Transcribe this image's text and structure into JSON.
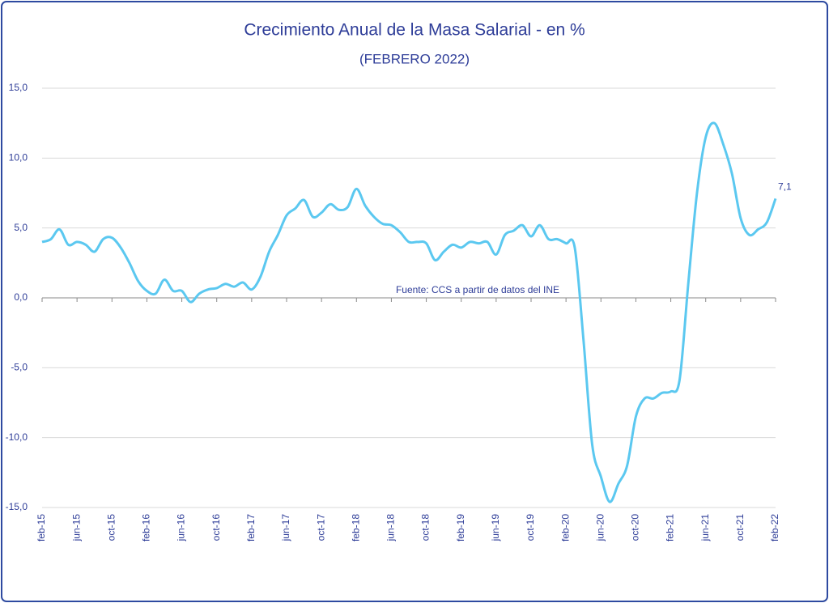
{
  "chart_data": {
    "type": "line",
    "title": "Crecimiento Anual de la Masa Salarial - en %",
    "subtitle": "(FEBRERO 2022)",
    "annotation": "Fuente: CCS a partir de datos del INE",
    "categories": [
      "feb-15",
      null,
      null,
      null,
      "jun-15",
      null,
      null,
      null,
      "oct-15",
      null,
      null,
      null,
      "feb-16",
      null,
      null,
      null,
      "jun-16",
      null,
      null,
      null,
      "oct-16",
      null,
      null,
      null,
      "feb-17",
      null,
      null,
      null,
      "jun-17",
      null,
      null,
      null,
      "oct-17",
      null,
      null,
      null,
      "feb-18",
      null,
      null,
      null,
      "jun-18",
      null,
      null,
      null,
      "oct-18",
      null,
      null,
      null,
      "feb-19",
      null,
      null,
      null,
      "jun-19",
      null,
      null,
      null,
      "oct-19",
      null,
      null,
      null,
      "feb-20",
      null,
      null,
      null,
      "jun-20",
      null,
      null,
      null,
      "oct-20",
      null,
      null,
      null,
      "feb-21",
      null,
      null,
      null,
      "jun-21",
      null,
      null,
      null,
      "oct-21",
      null,
      null,
      null,
      "feb-22"
    ],
    "series": [
      {
        "name": "Crecimiento Anual de la Masa Salarial",
        "color": "#5bc8f0",
        "values": [
          4.0,
          4.2,
          4.9,
          3.8,
          4.0,
          3.8,
          3.3,
          4.2,
          4.3,
          3.6,
          2.5,
          1.2,
          0.5,
          0.3,
          1.3,
          0.5,
          0.5,
          -0.3,
          0.3,
          0.6,
          0.7,
          1.0,
          0.8,
          1.1,
          0.6,
          1.5,
          3.3,
          4.5,
          5.9,
          6.4,
          7.0,
          5.8,
          6.1,
          6.7,
          6.3,
          6.5,
          7.8,
          6.6,
          5.8,
          5.3,
          5.2,
          4.7,
          4.0,
          4.0,
          3.9,
          2.7,
          3.3,
          3.8,
          3.6,
          4.0,
          3.9,
          4.0,
          3.1,
          4.5,
          4.8,
          5.2,
          4.4,
          5.2,
          4.2,
          4.2,
          3.9,
          3.6,
          -3.0,
          -10.5,
          -12.8,
          -14.6,
          -13.3,
          -12.0,
          -8.5,
          -7.2,
          -7.2,
          -6.8,
          -6.7,
          -5.9,
          1.0,
          7.5,
          11.5,
          12.5,
          11.0,
          8.9,
          5.7,
          4.5,
          4.9,
          5.4,
          7.1
        ],
        "value_labels": [
          null,
          null,
          null,
          null,
          null,
          null,
          null,
          null,
          null,
          null,
          null,
          null,
          null,
          null,
          null,
          null,
          null,
          null,
          null,
          null,
          null,
          null,
          null,
          null,
          null,
          null,
          null,
          null,
          null,
          null,
          null,
          null,
          null,
          null,
          null,
          null,
          null,
          null,
          null,
          null,
          null,
          null,
          null,
          null,
          null,
          null,
          null,
          null,
          null,
          null,
          null,
          null,
          null,
          null,
          null,
          null,
          null,
          null,
          null,
          null,
          null,
          null,
          null,
          null,
          null,
          null,
          null,
          null,
          null,
          null,
          null,
          null,
          null,
          null,
          null,
          null,
          null,
          null,
          null,
          null,
          null,
          null,
          null,
          null,
          "7,1"
        ]
      }
    ],
    "ylim": [
      -15,
      15
    ],
    "yticks": [
      {
        "value": -15,
        "label": "-15,0"
      },
      {
        "value": -10,
        "label": "-10,0"
      },
      {
        "value": -5,
        "label": "-5,0"
      },
      {
        "value": 0,
        "label": "0,0"
      },
      {
        "value": 5,
        "label": "5,0"
      },
      {
        "value": 10,
        "label": "10,0"
      },
      {
        "value": 15,
        "label": "15,0"
      }
    ],
    "grid": true
  }
}
